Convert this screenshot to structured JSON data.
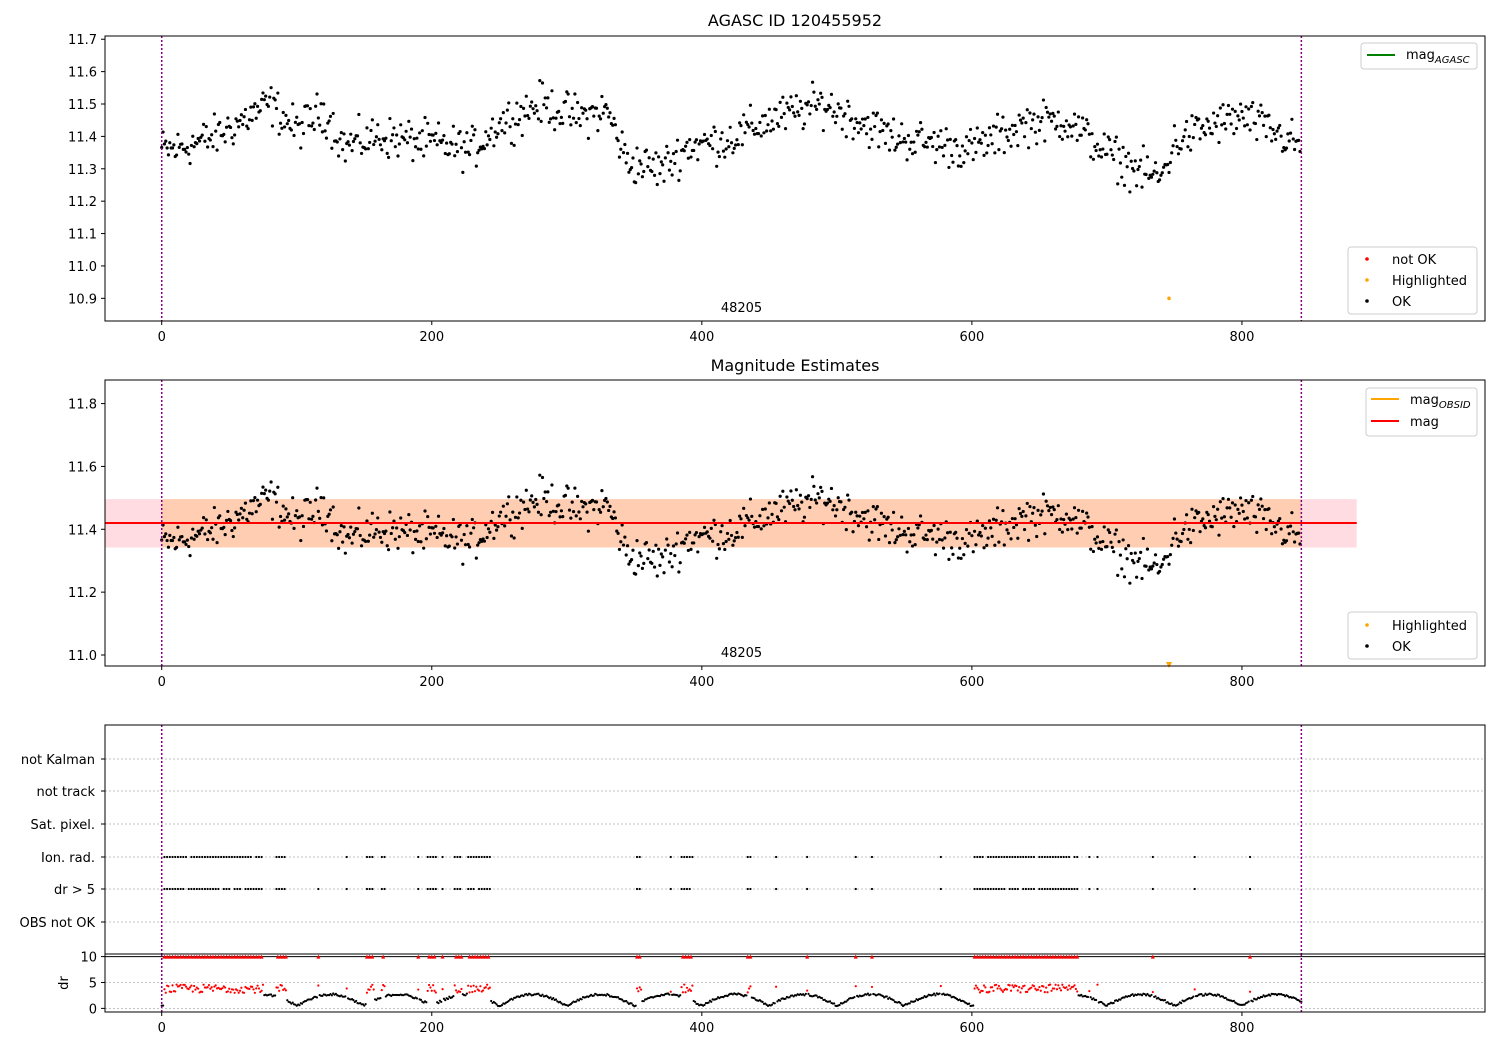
{
  "chart_data": [
    {
      "type": "scatter",
      "title": "AGASC ID 120455952",
      "xlim": [
        -42,
        980
      ],
      "ylim": [
        10.83,
        11.71
      ],
      "xticks": [
        0,
        200,
        400,
        600,
        800
      ],
      "yticks": [
        10.9,
        11.0,
        11.1,
        11.2,
        11.3,
        11.4,
        11.5,
        11.6,
        11.7
      ],
      "vlines": [
        0,
        844
      ],
      "vline_color": "#800080",
      "obsid_label": {
        "text": "48205",
        "x": 422,
        "y": 10.87
      },
      "legend_upper": [
        {
          "name": "mag",
          "subscript": "AGASC",
          "color": "#008000"
        }
      ],
      "legend_lower": [
        {
          "name": "not OK",
          "color": "#ff0000"
        },
        {
          "name": "Highlighted",
          "color": "#ffa500"
        },
        {
          "name": "OK",
          "color": "#000000"
        }
      ],
      "highlighted_point": {
        "x": 746,
        "y": 10.9
      },
      "series": [
        {
          "name": "OK",
          "color": "#000000",
          "anchors_x": [
            0,
            10,
            40,
            80,
            100,
            120,
            135,
            160,
            200,
            230,
            250,
            280,
            310,
            330,
            345,
            370,
            390,
            420,
            450,
            490,
            510,
            540,
            570,
            600,
            640,
            670,
            700,
            720,
            740,
            750,
            775,
            800,
            830,
            844
          ],
          "anchors_y": [
            11.36,
            11.36,
            11.4,
            11.5,
            11.42,
            11.48,
            11.37,
            11.4,
            11.38,
            11.36,
            11.44,
            11.5,
            11.46,
            11.48,
            11.32,
            11.3,
            11.37,
            11.39,
            11.45,
            11.5,
            11.46,
            11.4,
            11.38,
            11.36,
            11.44,
            11.45,
            11.35,
            11.3,
            11.27,
            11.38,
            11.43,
            11.46,
            11.4,
            11.37
          ],
          "n_points": 844,
          "noise": 0.07
        }
      ]
    },
    {
      "type": "scatter",
      "title": "Magnitude Estimates",
      "xlim": [
        -42,
        980
      ],
      "ylim": [
        10.965,
        11.875
      ],
      "xticks": [
        0,
        200,
        400,
        600,
        800
      ],
      "yticks": [
        11.0,
        11.2,
        11.4,
        11.6,
        11.8
      ],
      "vlines": [
        0,
        844
      ],
      "obsid_label": {
        "text": "48205",
        "x": 422,
        "y": 11.0
      },
      "mag": 11.42,
      "mag_band": [
        11.342,
        11.496
      ],
      "mag_band_x": [
        -42,
        885
      ],
      "obsid_band": [
        11.342,
        11.496
      ],
      "obsid_band_x": [
        0,
        844
      ],
      "highlighted_point": {
        "x": 746,
        "y": 10.968
      },
      "legend_upper": [
        {
          "name": "mag",
          "subscript": "OBSID",
          "color": "#ffa500"
        },
        {
          "name": "mag",
          "subscript": "",
          "color": "#ff0000"
        }
      ],
      "legend_lower": [
        {
          "name": "Highlighted",
          "color": "#ffa500"
        },
        {
          "name": "OK",
          "color": "#000000"
        }
      ]
    },
    {
      "type": "scatter",
      "xlim": [
        -42,
        980
      ],
      "xticks": [
        0,
        200,
        400,
        600,
        800
      ],
      "flag_labels": [
        "not Kalman",
        "not track",
        "Sat. pixel.",
        "Ion. rad.",
        "dr > 5",
        "OBS not OK"
      ],
      "flag_points": {
        "Ion. rad.": [
          [
            2,
            75
          ],
          [
            85,
            92
          ],
          [
            137
          ],
          [
            152,
            157
          ],
          [
            163,
            165
          ],
          [
            190
          ],
          [
            197,
            203
          ],
          [
            208
          ],
          [
            217,
            222
          ],
          [
            227,
            243
          ],
          [
            352,
            355
          ],
          [
            377
          ],
          [
            385,
            393
          ],
          [
            434,
            436
          ],
          [
            455
          ],
          [
            478
          ],
          [
            514
          ],
          [
            526
          ],
          [
            577
          ],
          [
            602,
            678
          ],
          [
            687
          ],
          [
            693
          ],
          [
            734
          ],
          [
            765
          ],
          [
            806
          ]
        ],
        "dr > 5": [
          [
            2,
            75
          ],
          [
            85,
            92
          ],
          [
            116
          ],
          [
            137
          ],
          [
            152,
            157
          ],
          [
            163,
            165
          ],
          [
            190
          ],
          [
            197,
            203
          ],
          [
            208
          ],
          [
            217,
            222
          ],
          [
            227,
            243
          ],
          [
            352,
            355
          ],
          [
            377
          ],
          [
            385,
            393
          ],
          [
            434,
            436
          ],
          [
            455
          ],
          [
            478
          ],
          [
            514
          ],
          [
            526
          ],
          [
            577
          ],
          [
            602,
            678
          ],
          [
            687
          ],
          [
            693
          ],
          [
            734
          ],
          [
            765
          ],
          [
            806
          ]
        ]
      },
      "dr_panel": {
        "ylabel": "dr",
        "yticks": [
          0,
          5,
          10
        ],
        "ylim": [
          -0.7,
          10.5
        ],
        "limit_line": 10,
        "points_red_marker_at_limit": true
      }
    }
  ]
}
